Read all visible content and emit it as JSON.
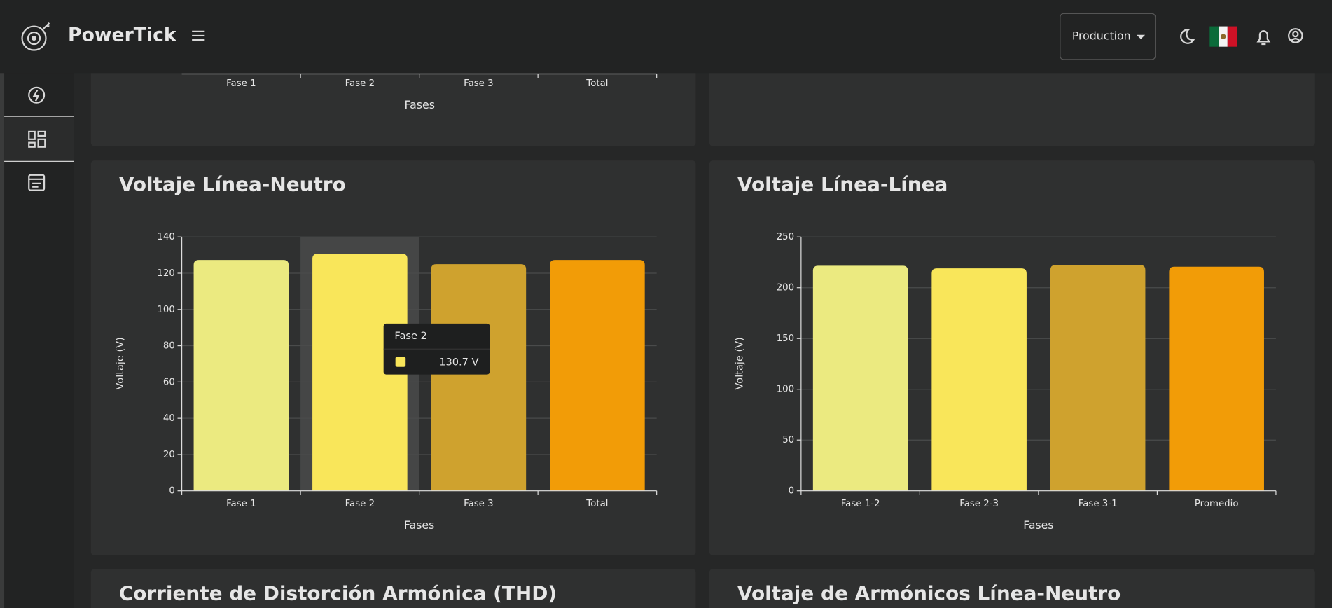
{
  "header": {
    "brand": "PowerTick",
    "environment": "Production"
  },
  "top_chart": {
    "categories": [
      "Fase 1",
      "Fase 2",
      "Fase 3",
      "Total"
    ],
    "x_label": "Fases"
  },
  "charts": [
    {
      "type": "bar",
      "title": "Voltaje Línea-Neutro",
      "y_label": "Voltaje (V)",
      "x_label": "Fases",
      "categories": [
        "Fase 1",
        "Fase 2",
        "Fase 3",
        "Total"
      ],
      "values": [
        127.3,
        130.7,
        125.0,
        127.3
      ],
      "value_labels": [
        null,
        "130.7 V",
        null,
        null
      ],
      "colors": [
        "#ebea80",
        "#f9e65a",
        "#cfa22e",
        "#f29c07"
      ],
      "ylim": [
        0,
        140
      ],
      "yticks": [
        0,
        20,
        40,
        60,
        80,
        100,
        120,
        140
      ],
      "grid": true
    },
    {
      "type": "bar",
      "title": "Voltaje Línea-Línea",
      "y_label": "Voltaje (V)",
      "x_label": "Fases",
      "categories": [
        "Fase 1-2",
        "Fase 2-3",
        "Fase 3-1",
        "Promedio"
      ],
      "values": [
        221.6,
        219.0,
        222.4,
        220.7
      ],
      "colors": [
        "#ebea80",
        "#f9e65a",
        "#cfa22e",
        "#f29c07"
      ],
      "ylim": [
        0,
        250
      ],
      "yticks": [
        0,
        50,
        100,
        150,
        200,
        250
      ],
      "grid": true
    }
  ],
  "bottom_titles": [
    "Corriente de Distorción Armónica (THD)",
    "Voltaje de Armónicos Línea-Neutro"
  ]
}
